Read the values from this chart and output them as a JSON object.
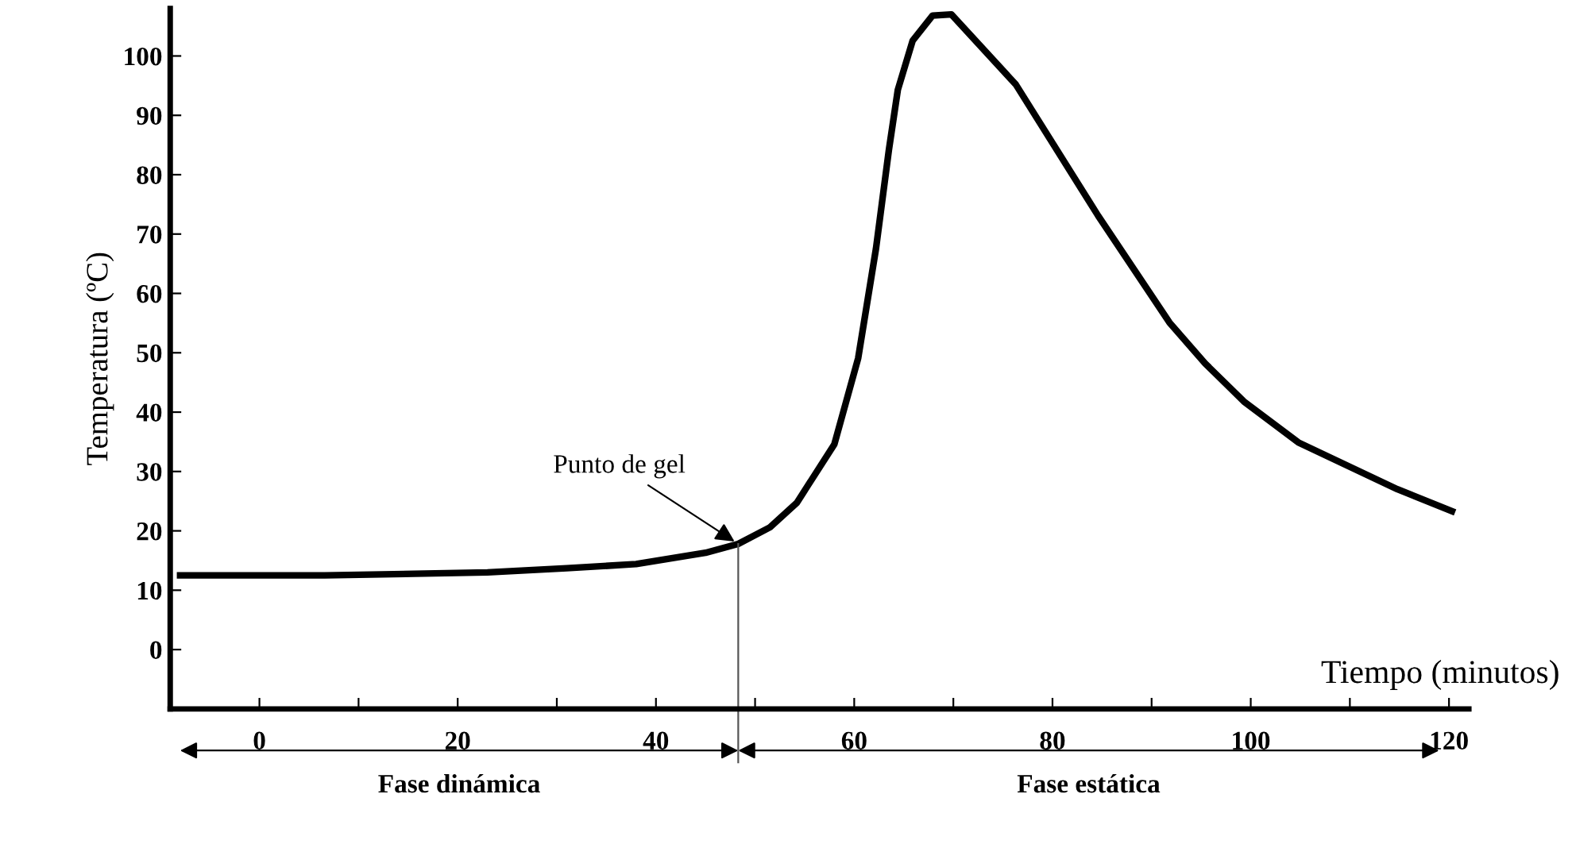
{
  "chart_data": {
    "type": "line",
    "xlabel": "Tiempo (minutos)",
    "ylabel": "Temperatura (ºC)",
    "series": [
      {
        "color": "#000000",
        "x": [
          -8,
          6.6,
          23,
          31,
          38,
          45,
          48.3,
          51.5,
          54.2,
          58,
          60.4,
          62.2,
          63.5,
          64.4,
          65.9,
          67.9,
          69.8,
          76.3,
          84.6,
          91.8,
          95.4,
          99.3,
          104.8,
          114.8,
          120.3
        ],
        "values": [
          12.5,
          12.5,
          13,
          13.7,
          14.4,
          16.3,
          17.8,
          20.6,
          24.7,
          34.6,
          49.1,
          67.6,
          84.2,
          94.3,
          102.6,
          106.8,
          107,
          95.2,
          73.1,
          55.1,
          48.2,
          41.8,
          34.9,
          27,
          23.3
        ]
      }
    ],
    "xlim": [
      -9,
      122
    ],
    "ylim": [
      -10,
      108
    ],
    "xticks": [
      0,
      {
        "value": 10,
        "label": null
      },
      20,
      {
        "value": 30,
        "label": null
      },
      40,
      {
        "value": 50,
        "label": null
      },
      60,
      {
        "value": 70,
        "label": null
      },
      80,
      {
        "value": 90,
        "label": null
      },
      100,
      {
        "value": 110,
        "label": null
      },
      120
    ],
    "yticks": [
      0,
      10,
      20,
      30,
      40,
      50,
      60,
      70,
      80,
      90,
      100
    ],
    "annotations": [
      {
        "text": "Punto de gel",
        "x": 48.3,
        "y": 17.8
      },
      "Fase dinámica",
      "Fase estática"
    ],
    "ref_lines": [
      {
        "axis": "x",
        "value": 48.3,
        "color": "#555555"
      }
    ],
    "grid": false,
    "legend": false,
    "marker": "none",
    "line_style": "solid"
  }
}
